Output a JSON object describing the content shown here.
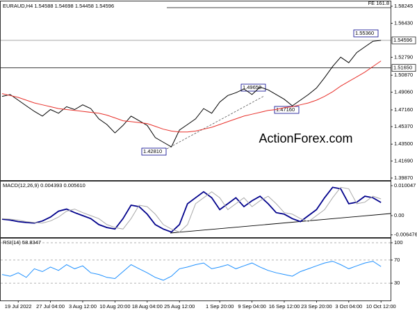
{
  "chart_data": [
    {
      "type": "line",
      "header": "EURAUD,H4 1.54588 1.54698 1.54458 1.54596",
      "watermark": "ActionForex.com",
      "categories": [
        null,
        null,
        "19 Jul 2022",
        null,
        null,
        null,
        "27 Jul 04:00",
        null,
        null,
        null,
        "3 Aug 12:00",
        null,
        null,
        null,
        "10 Aug 20:00",
        null,
        null,
        null,
        "18 Aug 04:00",
        null,
        null,
        null,
        "25 Aug 12:00",
        null,
        null,
        null,
        null,
        "1 Sep 20:00",
        null,
        null,
        null,
        "9 Sep 04:00",
        null,
        null,
        null,
        "16 Sep 12:00",
        null,
        null,
        null,
        "23 Sep 20:00",
        null,
        null,
        null,
        "3 Oct 04:00",
        null,
        null,
        null,
        "10 Oct 12:00"
      ],
      "series": [
        {
          "color": "#000000",
          "values": [
            1.486,
            1.488,
            1.482,
            1.476,
            1.47,
            1.465,
            1.472,
            1.468,
            1.475,
            1.472,
            1.477,
            1.473,
            1.462,
            1.456,
            1.447,
            1.455,
            1.465,
            1.46,
            1.455,
            1.442,
            1.437,
            1.432,
            1.45,
            1.456,
            1.462,
            1.473,
            1.468,
            1.48,
            1.487,
            1.49,
            1.494,
            1.488,
            1.496,
            1.493,
            1.488,
            1.483,
            1.476,
            1.482,
            1.488,
            1.495,
            1.506,
            1.518,
            1.528,
            1.522,
            1.533,
            1.539,
            1.545,
            1.546
          ]
        },
        {
          "color": "#e8302a",
          "values": [
            1.489,
            1.487,
            1.485,
            1.482,
            1.479,
            1.477,
            1.475,
            1.473,
            1.472,
            1.471,
            1.47,
            1.469,
            1.468,
            1.466,
            1.463,
            1.46,
            1.459,
            1.458,
            1.457,
            1.454,
            1.451,
            1.449,
            1.448,
            1.448,
            1.449,
            1.451,
            1.453,
            1.456,
            1.459,
            1.462,
            1.465,
            1.467,
            1.469,
            1.471,
            1.472,
            1.474,
            1.475,
            1.477,
            1.479,
            1.482,
            1.486,
            1.491,
            1.497,
            1.502,
            1.507,
            1.512,
            1.518,
            1.524
          ]
        }
      ],
      "ylim": [
        1.3972,
        1.5869
      ],
      "yticks": [
        1.58245,
        {
          "value": 1.5643,
          "label": "1.56430"
        },
        {
          "value": 1.5279,
          "label": "1.52790"
        },
        {
          "value": 1.5087,
          "label": "1.50870"
        },
        {
          "value": 1.4906,
          "label": "1.49060"
        },
        {
          "value": 1.4716,
          "label": "1.47160"
        },
        {
          "value": 1.4537,
          "label": "1.45370"
        },
        {
          "value": 1.435,
          "label": "1.43500"
        },
        {
          "value": 1.4169,
          "label": "1.41690"
        },
        {
          "value": 1.3987,
          "label": "1.39870"
        }
      ],
      "levels": [
        1.54596,
        {
          "value": 1.5165,
          "label": "1.51650"
        }
      ],
      "annotations": [
        "FE 161.8",
        "1.55360",
        "1.49650",
        "1.47160",
        "1.42810"
      ]
    },
    {
      "type": "line",
      "title": "MACD(12,26,9) 0.004393 0.005610",
      "series": [
        {
          "color": "#00008b",
          "values": [
            -0.0012,
            -0.0015,
            -0.002,
            -0.0023,
            -0.0025,
            -0.0018,
            -0.0005,
            0.0015,
            0.0022,
            0.001,
            0.0,
            -0.001,
            -0.003,
            -0.004,
            -0.0045,
            -0.001,
            0.0035,
            0.003,
            0.0005,
            -0.003,
            -0.0045,
            -0.0055,
            -0.003,
            0.004,
            0.006,
            0.008,
            0.006,
            0.002,
            0.004,
            0.006,
            0.003,
            0.005,
            0.0065,
            0.004,
            0.001,
            0.0005,
            -0.001,
            -0.002,
            0.0,
            0.002,
            0.006,
            0.0095,
            0.009,
            0.004,
            0.0045,
            0.0065,
            0.006,
            0.0044
          ]
        },
        {
          "color": "#a9a9a9",
          "values": [
            -0.001,
            -0.0012,
            -0.0015,
            -0.002,
            -0.0023,
            -0.0025,
            -0.0018,
            -0.0005,
            0.0015,
            0.0022,
            0.001,
            0.0,
            -0.001,
            -0.003,
            -0.004,
            -0.0045,
            -0.001,
            0.0035,
            0.003,
            0.0005,
            -0.003,
            -0.0045,
            -0.0055,
            -0.003,
            0.004,
            0.006,
            0.008,
            0.006,
            0.002,
            0.004,
            0.006,
            0.003,
            0.005,
            0.0065,
            0.004,
            0.001,
            0.0005,
            -0.001,
            -0.002,
            0.0,
            0.002,
            0.006,
            0.0095,
            0.009,
            0.004,
            0.0045,
            0.0065,
            0.0056
          ]
        }
      ],
      "ylim": [
        -0.007,
        0.0112
      ],
      "yticks": [
        0.010047,
        {
          "value": 0,
          "label": "0.00"
        },
        -0.006476
      ]
    },
    {
      "type": "line",
      "title": "RSI(14) 58.8347",
      "series": [
        {
          "color": "#1e90ff",
          "values": [
            45,
            42,
            48,
            40,
            55,
            50,
            58,
            52,
            62,
            55,
            60,
            48,
            45,
            40,
            38,
            50,
            62,
            55,
            48,
            40,
            35,
            42,
            55,
            58,
            62,
            65,
            55,
            58,
            62,
            55,
            60,
            65,
            58,
            52,
            48,
            45,
            42,
            50,
            55,
            60,
            65,
            68,
            62,
            55,
            60,
            65,
            68,
            58.8347
          ]
        }
      ],
      "ylim": [
        0,
        100
      ],
      "yticks": [
        100,
        70,
        30
      ],
      "grid": true
    }
  ]
}
